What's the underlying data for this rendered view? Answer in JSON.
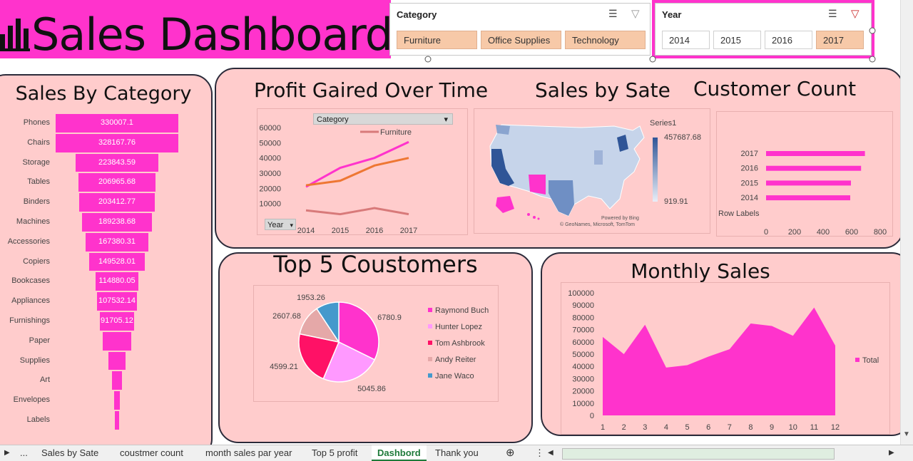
{
  "title": "Sales Dashboard",
  "slicers": {
    "category": {
      "label": "Category",
      "items": [
        "Furniture",
        "Office Supplies",
        "Technology"
      ]
    },
    "year": {
      "label": "Year",
      "items": [
        "2014",
        "2015",
        "2016",
        "2017"
      ],
      "selected": "2017"
    }
  },
  "panels": {
    "sales_by_category": "Sales By Category",
    "profit": "Profit  Gaired Over Time",
    "sales_by_state": "Sales by Sate",
    "customer_count": "Customer Count",
    "top5": "Top 5 Coustomers",
    "monthly": "Monthly Sales"
  },
  "chart_data": [
    {
      "id": "funnel",
      "type": "bar",
      "title": "Sales By Category",
      "categories": [
        "Phones",
        "Chairs",
        "Storage",
        "Tables",
        "Binders",
        "Machines",
        "Accessories",
        "Copiers",
        "Bookcases",
        "Appliances",
        "Furnishings",
        "Paper",
        "Supplies",
        "Art",
        "Envelopes",
        "Labels"
      ],
      "values": [
        330007.1,
        328167.76,
        223843.59,
        206965.68,
        203412.77,
        189238.68,
        167380.31,
        149528.01,
        114880.05,
        107532.14,
        91705.12,
        78000,
        46000,
        27000,
        16000,
        12000
      ],
      "labels": [
        "330007.1",
        "328167.76",
        "223843.59",
        "206965.68",
        "203412.77",
        "189238.68",
        "167380.31",
        "149528.01",
        "114880.05",
        "107532.14",
        "91705.12",
        "",
        "",
        "",
        "",
        ""
      ]
    },
    {
      "id": "profit",
      "type": "line",
      "title": "Profit  Gaired Over Time",
      "filter_label": "Category",
      "year_label": "Year",
      "x": [
        "2014",
        "2015",
        "2016",
        "2017"
      ],
      "yticks": [
        "60000",
        "50000",
        "40000",
        "30000",
        "20000",
        "10000"
      ],
      "ylim": [
        0,
        60000
      ],
      "series": [
        {
          "name": "",
          "color": "#ff33cc",
          "values": [
            21000,
            33500,
            40000,
            50500
          ]
        },
        {
          "name": "",
          "color": "#ee7733",
          "values": [
            22000,
            25000,
            35000,
            40000
          ]
        },
        {
          "name": "Furniture",
          "color": "#d87a7a",
          "values": [
            5500,
            3000,
            7000,
            3000
          ]
        }
      ]
    },
    {
      "id": "map",
      "type": "heatmap",
      "legend_title": "Series1",
      "max": "457687.68",
      "min": "919.91",
      "credit1": "Powered by Bing",
      "credit2": "© GeoNames, Microsoft, TomTom"
    },
    {
      "id": "customers",
      "type": "bar",
      "title": "Customer Count",
      "categories": [
        "2017",
        "2016",
        "2015",
        "2014"
      ],
      "values": [
        693,
        666,
        595,
        590
      ],
      "xticks": [
        "0",
        "200",
        "400",
        "600",
        "800"
      ],
      "xlim": [
        0,
        800
      ],
      "row_labels": "Row Labels"
    },
    {
      "id": "top5",
      "type": "pie",
      "title": "Top 5 Coustomers",
      "slices": [
        {
          "name": "Raymond Buch",
          "value": 6780.9,
          "label": "6780.9",
          "color": "#ff33cc"
        },
        {
          "name": "Hunter Lopez",
          "value": 5045.86,
          "label": "5045.86",
          "color": "#ff99ff"
        },
        {
          "name": "Tom Ashbrook",
          "value": 4599.21,
          "label": "4599.21",
          "color": "#ff1166"
        },
        {
          "name": "Andy Reiter",
          "value": 2607.68,
          "label": "2607.68",
          "color": "#e5a8a8"
        },
        {
          "name": "Jane Waco",
          "value": 1953.26,
          "label": "1953.26",
          "color": "#4499cc"
        }
      ]
    },
    {
      "id": "monthly",
      "type": "area",
      "title": "Monthly Sales",
      "legend": "Total",
      "x": [
        "1",
        "2",
        "3",
        "4",
        "5",
        "6",
        "7",
        "8",
        "9",
        "10",
        "11",
        "12"
      ],
      "values": [
        64000,
        50000,
        74000,
        39000,
        41000,
        48000,
        54000,
        75000,
        73000,
        65000,
        88000,
        57000
      ],
      "yticks": [
        "100000",
        "90000",
        "80000",
        "70000",
        "60000",
        "50000",
        "40000",
        "30000",
        "20000",
        "10000",
        "0"
      ],
      "ylim": [
        0,
        100000
      ]
    }
  ],
  "tabs": [
    "...",
    "Sales by Sate",
    "coustmer count",
    "month sales par year",
    "Top 5 profit",
    "Dashbord",
    "Thank you"
  ],
  "active_tab": "Dashbord"
}
